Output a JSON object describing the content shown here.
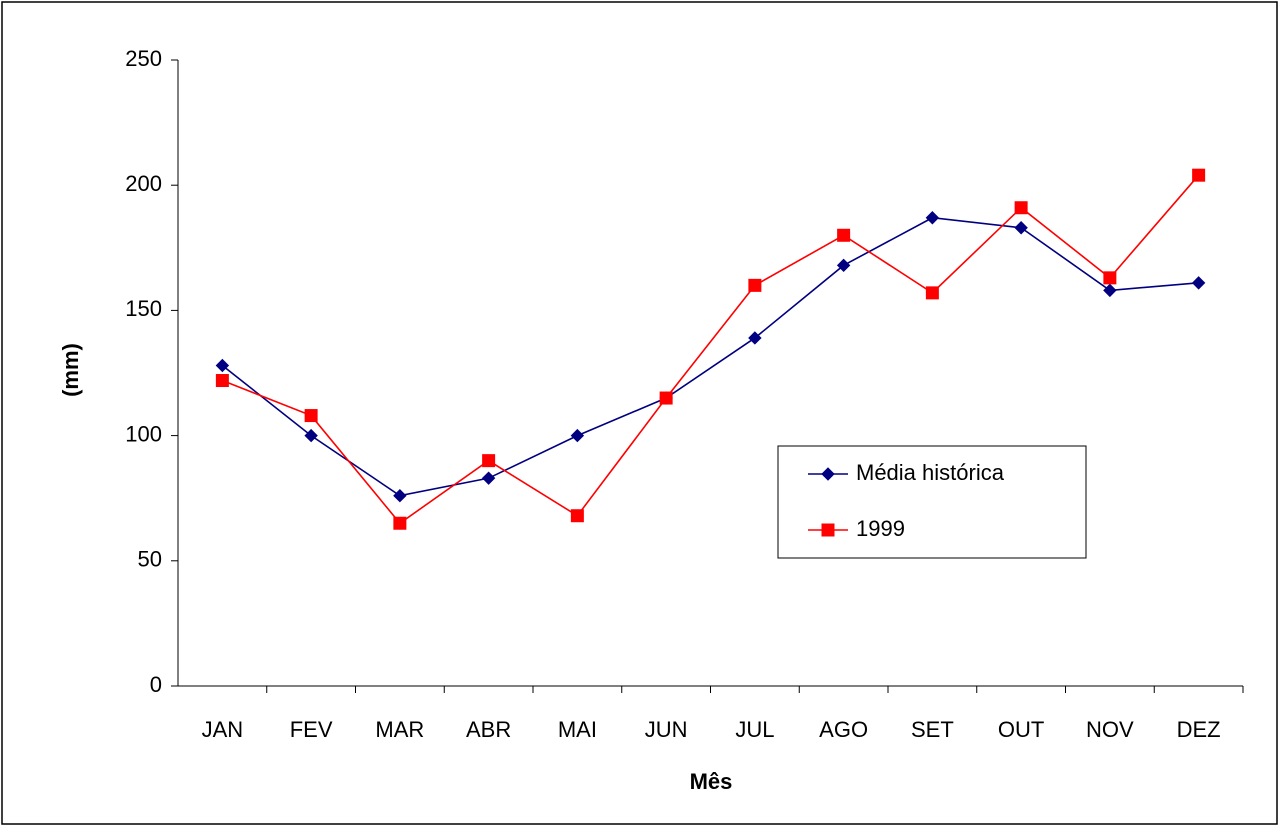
{
  "chart_data": {
    "type": "line",
    "xlabel": "Mês",
    "ylabel": "(mm)",
    "categories": [
      "JAN",
      "FEV",
      "MAR",
      "ABR",
      "MAI",
      "JUN",
      "JUL",
      "AGO",
      "SET",
      "OUT",
      "NOV",
      "DEZ"
    ],
    "series": [
      {
        "name": "Média histórica",
        "color": "#000080",
        "marker": "diamond",
        "values": [
          128,
          100,
          76,
          83,
          100,
          115,
          139,
          168,
          187,
          183,
          158,
          161
        ]
      },
      {
        "name": "1999",
        "color": "#ff0000",
        "marker": "square",
        "values": [
          122,
          108,
          65,
          90,
          68,
          115,
          160,
          180,
          157,
          191,
          163,
          204
        ]
      }
    ],
    "ylim": [
      0,
      250
    ],
    "yticks": [
      0,
      50,
      100,
      150,
      200,
      250
    ],
    "grid": false,
    "legend": "right"
  }
}
